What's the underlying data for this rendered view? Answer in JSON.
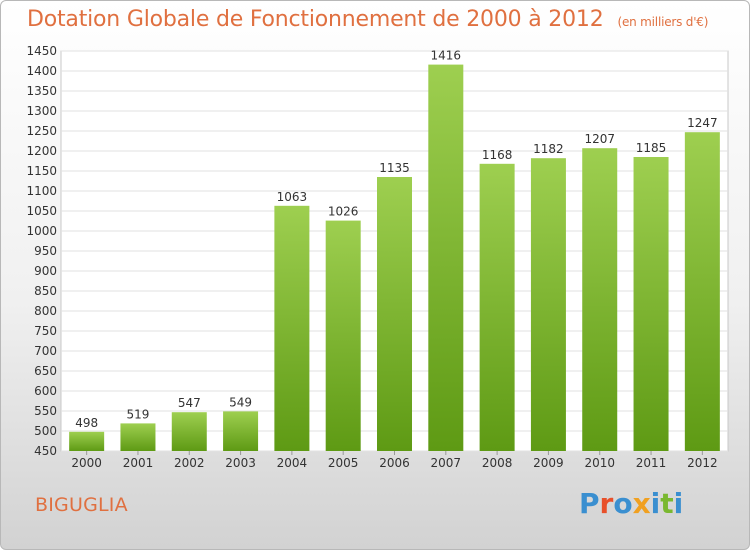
{
  "header": {
    "title": "Dotation Globale de Fonctionnement de 2000 à 2012",
    "unit": "(en milliers d'€)"
  },
  "footer": {
    "city": "BIGUGLIA",
    "logo_text": "Proxiti"
  },
  "colors": {
    "title": "#e07040",
    "bar_light": "#9ecf50",
    "bar_dark": "#5e9a14",
    "logo_letters": [
      "#3a8fd0",
      "#e8502a",
      "#3a8fd0",
      "#f0a020",
      "#3a8fd0",
      "#7ab830",
      "#3a8fd0"
    ]
  },
  "chart_data": {
    "type": "bar",
    "categories": [
      "2000",
      "2001",
      "2002",
      "2003",
      "2004",
      "2005",
      "2006",
      "2007",
      "2008",
      "2009",
      "2010",
      "2011",
      "2012"
    ],
    "values": [
      498,
      519,
      547,
      549,
      1063,
      1026,
      1135,
      1416,
      1168,
      1182,
      1207,
      1185,
      1247
    ],
    "title": "Dotation Globale de Fonctionnement de 2000 à 2012",
    "xlabel": "",
    "ylabel": "",
    "ylim": [
      450,
      1450
    ],
    "yticks": [
      450,
      500,
      550,
      600,
      650,
      700,
      750,
      800,
      850,
      900,
      950,
      1000,
      1050,
      1100,
      1150,
      1200,
      1250,
      1300,
      1350,
      1400,
      1450
    ],
    "grid": true,
    "legend": "none"
  }
}
